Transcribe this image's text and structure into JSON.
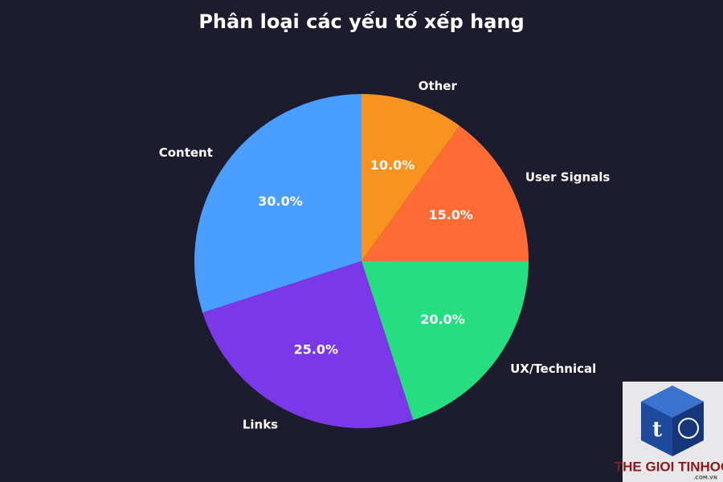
{
  "chart_data": {
    "type": "pie",
    "title": "Phân loại các yếu tố xếp hạng",
    "categories": [
      "Content",
      "Links",
      "UX/Technical",
      "User Signals",
      "Other"
    ],
    "values": [
      30,
      25,
      20,
      15,
      10
    ],
    "value_labels": [
      "30.0%",
      "25.0%",
      "20.0%",
      "15.0%",
      "10.0%"
    ],
    "colors": [
      "#4a9eff",
      "#7b38e8",
      "#26de81",
      "#ff6b35",
      "#f7931e"
    ],
    "start_angle": 90,
    "direction": "counterclockwise"
  },
  "watermark": {
    "brand": "THE GIOI TINHOC",
    "domain": ".COM.VN"
  }
}
